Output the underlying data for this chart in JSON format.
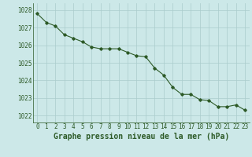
{
  "hours": [
    0,
    1,
    2,
    3,
    4,
    5,
    6,
    7,
    8,
    9,
    10,
    11,
    12,
    13,
    14,
    15,
    16,
    17,
    18,
    19,
    20,
    21,
    22,
    23
  ],
  "pressure": [
    1027.8,
    1027.3,
    1027.1,
    1026.6,
    1026.4,
    1026.2,
    1025.9,
    1025.8,
    1025.8,
    1025.8,
    1025.6,
    1025.4,
    1025.35,
    1024.7,
    1024.3,
    1023.6,
    1023.2,
    1023.2,
    1022.9,
    1022.85,
    1022.5,
    1022.5,
    1022.6,
    1022.3
  ],
  "line_color": "#2d5a27",
  "marker": "D",
  "marker_size": 1.8,
  "bg_color": "#cce8e8",
  "grid_color": "#aacccc",
  "xlabel": "Graphe pression niveau de la mer (hPa)",
  "xlabel_fontsize": 7,
  "xlabel_color": "#2d5a27",
  "ytick_labels": [
    1022,
    1023,
    1024,
    1025,
    1026,
    1027,
    1028
  ],
  "ylim": [
    1021.6,
    1028.4
  ],
  "xlim": [
    -0.5,
    23.5
  ],
  "tick_fontsize": 5.5,
  "tick_color": "#2d5a27",
  "linewidth": 0.8
}
